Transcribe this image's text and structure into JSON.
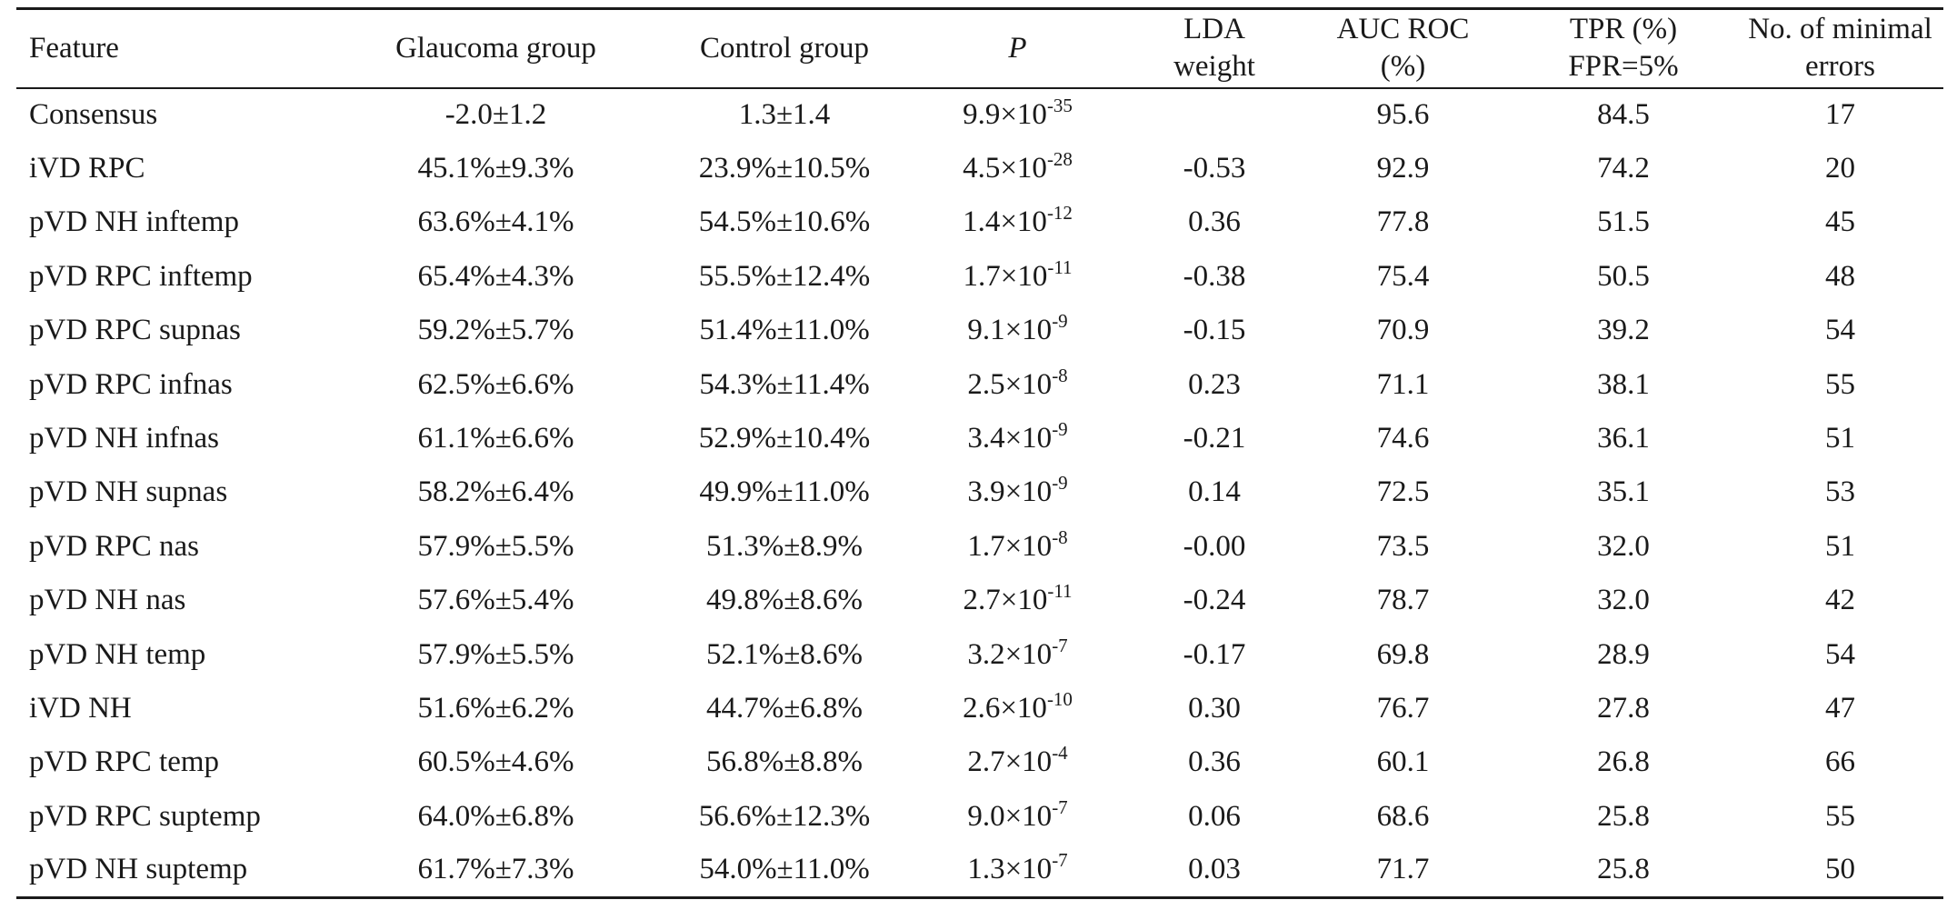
{
  "headers": [
    [
      "Feature"
    ],
    [
      "Glaucoma group"
    ],
    [
      "Control group"
    ],
    [
      "P"
    ],
    [
      "LDA",
      "weight"
    ],
    [
      "AUC ROC",
      "(%)"
    ],
    [
      "TPR (%)",
      "FPR=5%"
    ],
    [
      "No. of minimal",
      "errors"
    ]
  ],
  "rows": [
    {
      "feature": "Consensus",
      "glaucoma": "-2.0±1.2",
      "control": "1.3±1.4",
      "p_base": "9.9×10",
      "p_exp": "-35",
      "lda": "",
      "auc": "95.6",
      "tpr": "84.5",
      "errors": "17"
    },
    {
      "feature": "iVD RPC",
      "glaucoma": "45.1%±9.3%",
      "control": "23.9%±10.5%",
      "p_base": "4.5×10",
      "p_exp": "-28",
      "lda": "-0.53",
      "auc": "92.9",
      "tpr": "74.2",
      "errors": "20"
    },
    {
      "feature": "pVD NH inftemp",
      "glaucoma": "63.6%±4.1%",
      "control": "54.5%±10.6%",
      "p_base": "1.4×10",
      "p_exp": "-12",
      "lda": "0.36",
      "auc": "77.8",
      "tpr": "51.5",
      "errors": "45"
    },
    {
      "feature": "pVD RPC inftemp",
      "glaucoma": "65.4%±4.3%",
      "control": "55.5%±12.4%",
      "p_base": "1.7×10",
      "p_exp": "-11",
      "lda": "-0.38",
      "auc": "75.4",
      "tpr": "50.5",
      "errors": "48"
    },
    {
      "feature": "pVD RPC supnas",
      "glaucoma": "59.2%±5.7%",
      "control": "51.4%±11.0%",
      "p_base": "9.1×10",
      "p_exp": "-9",
      "lda": "-0.15",
      "auc": "70.9",
      "tpr": "39.2",
      "errors": "54"
    },
    {
      "feature": "pVD RPC infnas",
      "glaucoma": "62.5%±6.6%",
      "control": "54.3%±11.4%",
      "p_base": "2.5×10",
      "p_exp": "-8",
      "lda": "0.23",
      "auc": "71.1",
      "tpr": "38.1",
      "errors": "55"
    },
    {
      "feature": "pVD NH infnas",
      "glaucoma": "61.1%±6.6%",
      "control": "52.9%±10.4%",
      "p_base": "3.4×10",
      "p_exp": "-9",
      "lda": "-0.21",
      "auc": "74.6",
      "tpr": "36.1",
      "errors": "51"
    },
    {
      "feature": "pVD NH supnas",
      "glaucoma": "58.2%±6.4%",
      "control": "49.9%±11.0%",
      "p_base": "3.9×10",
      "p_exp": "-9",
      "lda": "0.14",
      "auc": "72.5",
      "tpr": "35.1",
      "errors": "53"
    },
    {
      "feature": "pVD RPC nas",
      "glaucoma": "57.9%±5.5%",
      "control": "51.3%±8.9%",
      "p_base": "1.7×10",
      "p_exp": "-8",
      "lda": "-0.00",
      "auc": "73.5",
      "tpr": "32.0",
      "errors": "51"
    },
    {
      "feature": "pVD NH nas",
      "glaucoma": "57.6%±5.4%",
      "control": "49.8%±8.6%",
      "p_base": "2.7×10",
      "p_exp": "-11",
      "lda": "-0.24",
      "auc": "78.7",
      "tpr": "32.0",
      "errors": "42"
    },
    {
      "feature": "pVD NH temp",
      "glaucoma": "57.9%±5.5%",
      "control": "52.1%±8.6%",
      "p_base": "3.2×10",
      "p_exp": "-7",
      "lda": "-0.17",
      "auc": "69.8",
      "tpr": "28.9",
      "errors": "54"
    },
    {
      "feature": "iVD NH",
      "glaucoma": "51.6%±6.2%",
      "control": "44.7%±6.8%",
      "p_base": "2.6×10",
      "p_exp": "-10",
      "lda": "0.30",
      "auc": "76.7",
      "tpr": "27.8",
      "errors": "47"
    },
    {
      "feature": "pVD RPC temp",
      "glaucoma": "60.5%±4.6%",
      "control": "56.8%±8.8%",
      "p_base": "2.7×10",
      "p_exp": "-4",
      "lda": "0.36",
      "auc": "60.1",
      "tpr": "26.8",
      "errors": "66"
    },
    {
      "feature": "pVD RPC suptemp",
      "glaucoma": "64.0%±6.8%",
      "control": "56.6%±12.3%",
      "p_base": "9.0×10",
      "p_exp": "-7",
      "lda": "0.06",
      "auc": "68.6",
      "tpr": "25.8",
      "errors": "55"
    },
    {
      "feature": "pVD NH suptemp",
      "glaucoma": "61.7%±7.3%",
      "control": "54.0%±11.0%",
      "p_base": "1.3×10",
      "p_exp": "-7",
      "lda": "0.03",
      "auc": "71.7",
      "tpr": "25.8",
      "errors": "50"
    }
  ]
}
